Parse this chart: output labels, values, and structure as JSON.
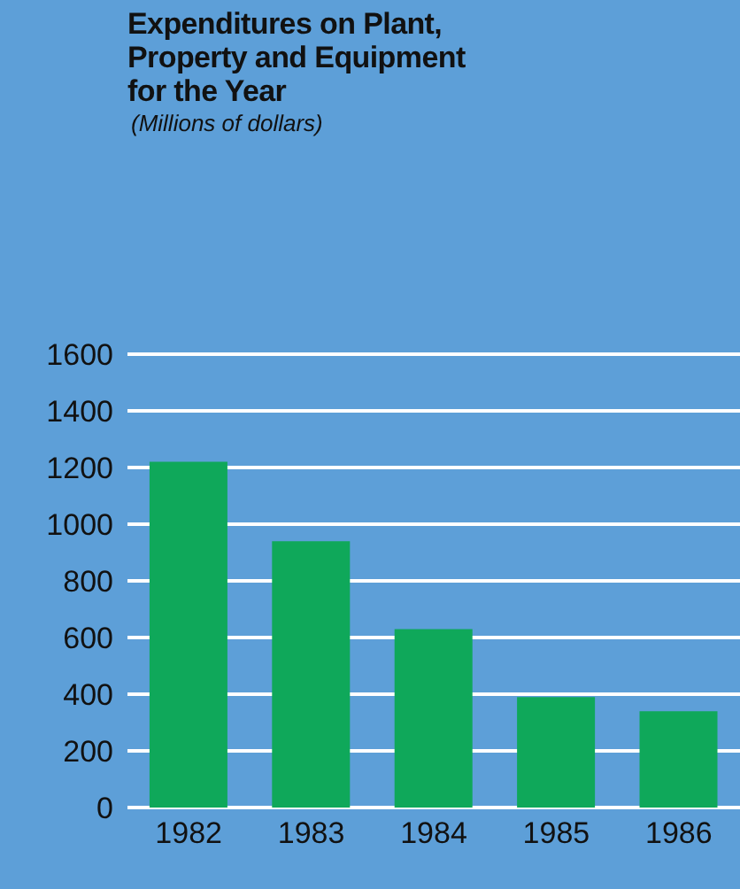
{
  "chart_data": {
    "type": "bar",
    "title": "Expenditures on Plant, Property and Equipment for the Year",
    "subtitle": "(Millions of dollars)",
    "categories": [
      "1982",
      "1983",
      "1984",
      "1985",
      "1986"
    ],
    "values": [
      1220,
      940,
      630,
      390,
      340
    ],
    "color": "#0fa85a",
    "ylim": [
      0,
      1600
    ],
    "yticks": [
      0,
      200,
      400,
      600,
      800,
      1000,
      1200,
      1400,
      1600
    ],
    "grid": "y"
  }
}
